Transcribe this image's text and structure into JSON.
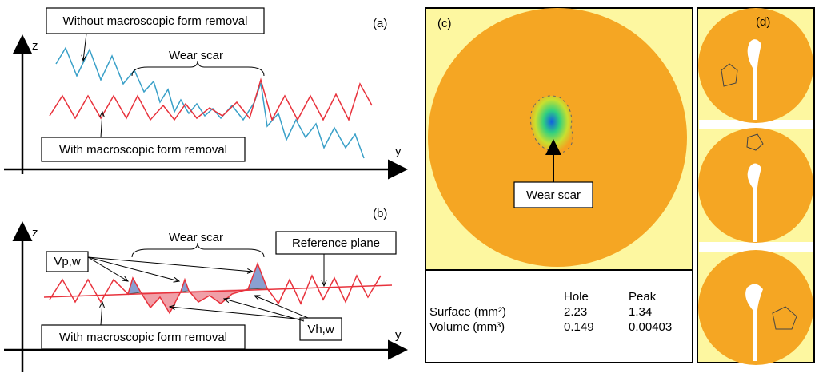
{
  "panel_a": {
    "label": "(a)",
    "z_axis": "z",
    "y_axis": "y",
    "top_note": "Without macroscopic form removal",
    "scar_note": "Wear scar",
    "bottom_note": "With macroscopic form removal"
  },
  "panel_b": {
    "label": "(b)",
    "z_axis": "z",
    "y_axis": "y",
    "scar_note": "Wear scar",
    "reference_note": "Reference plane",
    "peak_note": "Vp,w",
    "hole_note": "Vh,w",
    "bottom_note": "With macroscopic form removal"
  },
  "panel_c": {
    "label": "(c)",
    "scar_note": "Wear scar",
    "table": {
      "header": [
        "Hole",
        "Peak"
      ],
      "rows": [
        [
          "Surface (mm²)",
          2.23,
          1.34
        ],
        [
          "Volume (mm³)",
          0.149,
          0.00403
        ]
      ]
    }
  },
  "panel_d": {
    "label": "(d)"
  }
}
